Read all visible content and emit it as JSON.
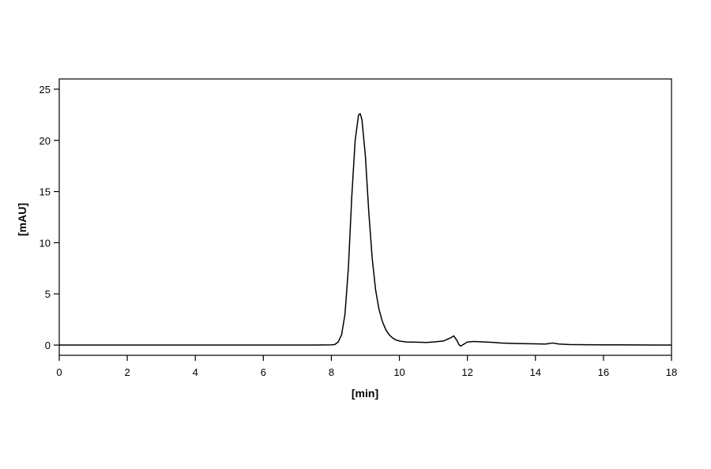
{
  "chart_data": {
    "type": "line",
    "title": "",
    "xlabel": "[min]",
    "ylabel": "[mAU]",
    "xlim": [
      0,
      18
    ],
    "ylim": [
      -1,
      26
    ],
    "x_ticks": [
      0,
      2,
      4,
      6,
      8,
      10,
      12,
      14,
      16,
      18
    ],
    "y_ticks": [
      0,
      5,
      10,
      15,
      20,
      25
    ],
    "grid": false,
    "legend": "none",
    "series": [
      {
        "color": "#000000",
        "x": [
          0,
          1,
          2,
          3,
          4,
          5,
          6,
          7,
          7.5,
          8.0,
          8.1,
          8.2,
          8.3,
          8.4,
          8.5,
          8.6,
          8.7,
          8.8,
          8.85,
          8.9,
          9.0,
          9.1,
          9.2,
          9.3,
          9.4,
          9.5,
          9.6,
          9.7,
          9.8,
          9.9,
          10.0,
          10.2,
          10.5,
          10.8,
          11.0,
          11.3,
          11.5,
          11.6,
          11.7,
          11.75,
          11.8,
          11.9,
          12.0,
          12.2,
          12.5,
          12.8,
          13.0,
          13.5,
          14.0,
          14.3,
          14.5,
          14.7,
          15.0,
          15.5,
          16.0,
          16.5,
          17.0,
          17.5,
          18.0
        ],
        "y": [
          0,
          0,
          0,
          0,
          0,
          0,
          0,
          0,
          0,
          0.02,
          0.05,
          0.3,
          1.0,
          3.0,
          7.5,
          14.5,
          20.0,
          22.5,
          22.6,
          22.0,
          18.5,
          13.0,
          8.5,
          5.4,
          3.5,
          2.3,
          1.5,
          1.0,
          0.7,
          0.5,
          0.4,
          0.3,
          0.28,
          0.25,
          0.3,
          0.4,
          0.7,
          0.9,
          0.4,
          0.05,
          -0.1,
          0.1,
          0.3,
          0.35,
          0.3,
          0.25,
          0.2,
          0.15,
          0.12,
          0.1,
          0.2,
          0.1,
          0.05,
          0.03,
          0.02,
          0.02,
          0.01,
          0.0,
          0.0
        ]
      }
    ]
  }
}
